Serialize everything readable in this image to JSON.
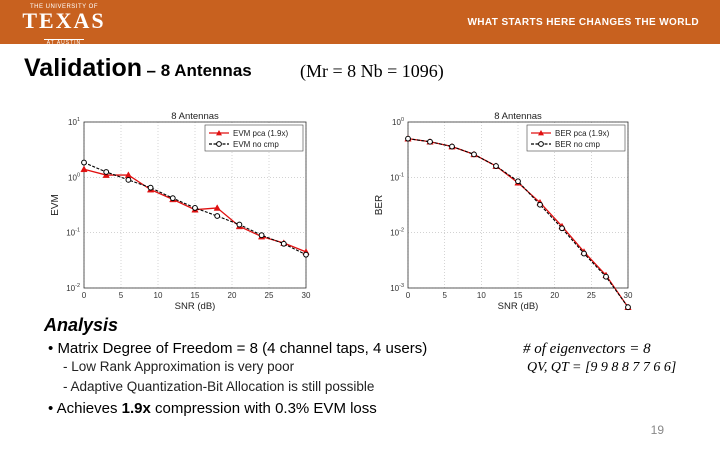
{
  "header": {
    "logo_top": "THE UNIVERSITY OF",
    "logo_main": "TEXAS",
    "logo_bottom": "AT AUSTIN",
    "tagline": "WHAT STARTS HERE CHANGES THE WORLD",
    "color": "#c8611f"
  },
  "slide": {
    "title": "Validation",
    "subtitle": "– 8 Antennas",
    "equation": "(Mr = 8   Nb = 1096)",
    "analysis_heading": "Analysis",
    "bullet1": "Matrix Degree of Freedom = 8 (4 channel taps, 4 users)",
    "sub1": "- Low Rank Approximation is very poor",
    "sub2": "- Adaptive Quantization-Bit Allocation is still possible",
    "bullet2_prefix": "Achieves ",
    "bullet2_bold": "1.9x",
    "bullet2_suffix": " compression with 0.3% EVM loss",
    "eq2": "# of eigenvectors = 8",
    "eq3": "QV, QT = [9 9 8 8 7 7 6 6]",
    "page_number": "19"
  },
  "chart_data": [
    {
      "type": "line",
      "title": "8 Antennas",
      "xlabel": "SNR (dB)",
      "ylabel": "EVM",
      "yscale": "log",
      "xlim": [
        0,
        30
      ],
      "ylim": [
        0.01,
        10
      ],
      "xticks": [
        "0",
        "5",
        "10",
        "15",
        "20",
        "25",
        "30"
      ],
      "yticks": [
        {
          "value": 10,
          "base": "10",
          "exp": "1"
        },
        {
          "value": 1,
          "base": "10",
          "exp": "0"
        },
        {
          "value": 0.1,
          "base": "10",
          "exp": "-1"
        },
        {
          "value": 0.01,
          "base": "10",
          "exp": "-2"
        }
      ],
      "grid": true,
      "legend_position": "top-right",
      "x": [
        0,
        3,
        6,
        9,
        12,
        15,
        18,
        21,
        24,
        27,
        30
      ],
      "series": [
        {
          "name": "EVM pca (1.9x)",
          "color": "#e01010",
          "marker": "triangle",
          "values": [
            1.4,
            1.1,
            1.1,
            0.6,
            0.4,
            0.26,
            0.28,
            0.13,
            0.085,
            0.065,
            0.045
          ]
        },
        {
          "name": "EVM no cmp",
          "color": "#000000",
          "marker": "circle",
          "values": [
            1.85,
            1.25,
            0.9,
            0.65,
            0.42,
            0.28,
            0.2,
            0.14,
            0.09,
            0.063,
            0.04
          ]
        }
      ]
    },
    {
      "type": "line",
      "title": "8 Antennas",
      "xlabel": "SNR (dB)",
      "ylabel": "BER",
      "yscale": "log",
      "xlim": [
        0,
        30
      ],
      "ylim": [
        0.001,
        1
      ],
      "xticks": [
        "0",
        "5",
        "10",
        "15",
        "20",
        "25",
        "30"
      ],
      "yticks": [
        {
          "value": 1,
          "base": "10",
          "exp": "0"
        },
        {
          "value": 0.1,
          "base": "10",
          "exp": "-1"
        },
        {
          "value": 0.01,
          "base": "10",
          "exp": "-2"
        },
        {
          "value": 0.001,
          "base": "10",
          "exp": "-3"
        }
      ],
      "grid": true,
      "legend_position": "top-right",
      "x": [
        0,
        3,
        6,
        9,
        12,
        15,
        18,
        21,
        24,
        27,
        30
      ],
      "series": [
        {
          "name": "BER pca (1.9x)",
          "color": "#e01010",
          "marker": "triangle",
          "values": [
            0.5,
            0.44,
            0.36,
            0.26,
            0.16,
            0.08,
            0.035,
            0.013,
            0.0045,
            0.0017,
            0.00045
          ]
        },
        {
          "name": "BER no cmp",
          "color": "#000000",
          "marker": "circle",
          "values": [
            0.5,
            0.44,
            0.36,
            0.26,
            0.16,
            0.085,
            0.032,
            0.012,
            0.0042,
            0.0016,
            0.00045
          ]
        }
      ]
    }
  ]
}
